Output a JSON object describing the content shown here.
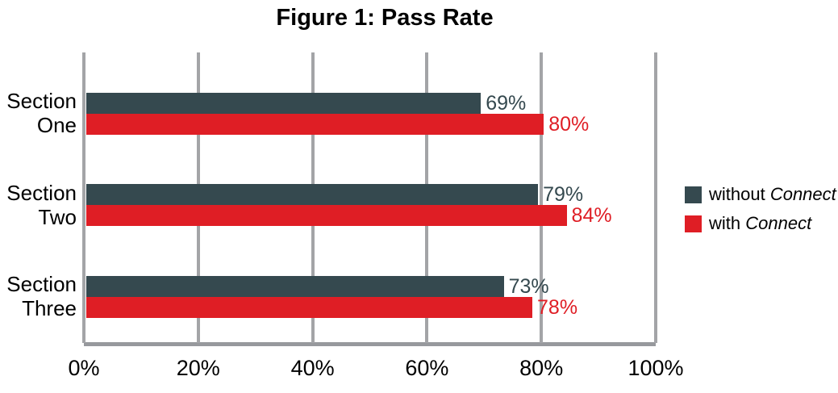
{
  "chart_data": {
    "type": "bar",
    "orientation": "horizontal",
    "title": "Figure 1: Pass Rate",
    "categories": [
      "Section One",
      "Section Two",
      "Section Three"
    ],
    "category_lines": [
      [
        "Section",
        "One"
      ],
      [
        "Section",
        "Two"
      ],
      [
        "Section",
        "Three"
      ]
    ],
    "series": [
      {
        "name": "without Connect",
        "values": [
          69,
          79,
          73
        ],
        "color": "#35494F"
      },
      {
        "name": "with Connect",
        "values": [
          80,
          84,
          78
        ],
        "color": "#DF1E25"
      }
    ],
    "data_labels": [
      [
        "69%",
        "79%",
        "73%"
      ],
      [
        "80%",
        "84%",
        "78%"
      ]
    ],
    "value_suffix": "%",
    "xlim": [
      0,
      100
    ],
    "xticks": [
      0,
      20,
      40,
      60,
      80,
      100
    ],
    "xtick_labels": [
      "0%",
      "20%",
      "40%",
      "60%",
      "80%",
      "100%"
    ],
    "grid": true,
    "legend_position": "right",
    "legend": [
      {
        "prefix": "without ",
        "italic": "Connect",
        "color": "#35494F"
      },
      {
        "prefix": "with ",
        "italic": "Connect",
        "color": "#DF1E25"
      }
    ],
    "colors": {
      "gridline": "#A3A4A7",
      "axis_line": "#97999D",
      "text": "#000000"
    }
  }
}
